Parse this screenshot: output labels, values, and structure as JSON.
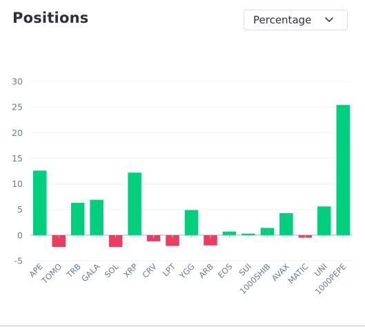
{
  "header": {
    "title": "Positions",
    "select_value": "Percentage",
    "select_icon": "chevron-down-icon"
  },
  "colors": {
    "positive": "#00d07e",
    "negative": "#ee3b60",
    "grid": "#eef0f3",
    "zero_line": "#b8c3d1"
  },
  "chart_data": {
    "type": "bar",
    "categories": [
      "APE",
      "TOMO",
      "TRB",
      "GALA",
      "SOL",
      "XRP",
      "CRV",
      "LPT",
      "YGG",
      "ARB",
      "EOS",
      "SUI",
      "1000SHIB",
      "AVAX",
      "MATIC",
      "UNI",
      "1000PEPE"
    ],
    "values": [
      12.6,
      -2.3,
      6.3,
      6.9,
      -2.3,
      12.2,
      -1.2,
      -2.1,
      4.9,
      -2.0,
      0.7,
      0.3,
      1.4,
      4.3,
      -0.5,
      5.6,
      25.4
    ],
    "title": "",
    "xlabel": "",
    "ylabel": "",
    "ylim": [
      -5,
      30
    ],
    "yticks": [
      30,
      25,
      20,
      15,
      10,
      5,
      0,
      -5
    ],
    "grid": true,
    "legend": "none"
  }
}
